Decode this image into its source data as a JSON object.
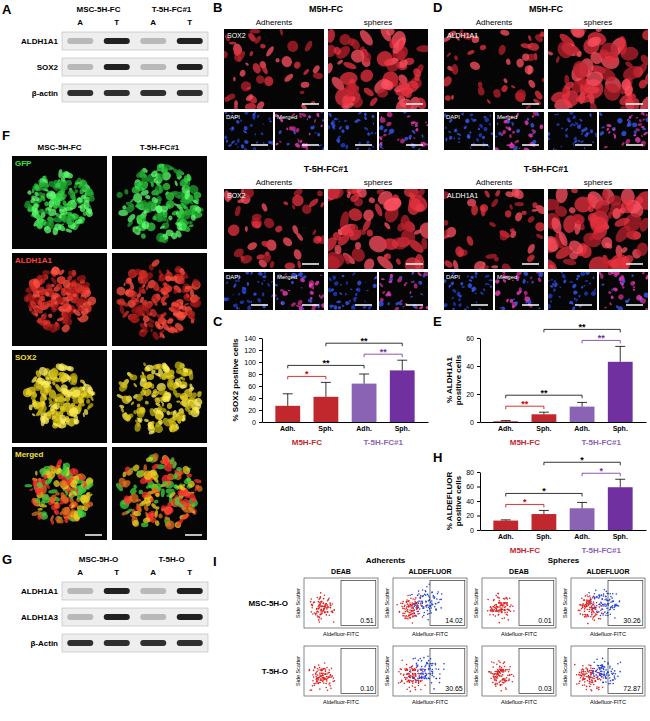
{
  "blots": [
    {
      "letter": "A",
      "groups": [
        "MSC-5H-FC",
        "T-5H-FC#1"
      ],
      "lanes": [
        "A",
        "T",
        "A",
        "T"
      ],
      "rows": [
        "ALDH1A1",
        "SOX2",
        "β-actin"
      ]
    },
    {
      "letter": "G",
      "groups": [
        "MSC-5H-O",
        "T-5H-O"
      ],
      "lanes": [
        "A",
        "T",
        "A",
        "T"
      ],
      "rows": [
        "ALDH1A1",
        "ALDH1A3",
        "β-Actin"
      ]
    }
  ],
  "micrographs": [
    {
      "letter": "B",
      "groups": [
        {
          "title": "M5H-FC",
          "columns": [
            "Adherents",
            "spheres"
          ],
          "stain": "SOX2",
          "channels": [
            "DAPI",
            "Merged"
          ]
        },
        {
          "title": "T-5H-FC#1",
          "columns": [
            "Adherents",
            "spheres"
          ],
          "stain": "SOX2",
          "channels": [
            "DAPI",
            "Merged"
          ]
        }
      ]
    },
    {
      "letter": "D",
      "groups": [
        {
          "title": "M5H-FC",
          "columns": [
            "Adherents",
            "spheres"
          ],
          "stain": "ALDH1A1",
          "channels": [
            "DAPI",
            "Merged"
          ]
        },
        {
          "title": "T-5H-FC#1",
          "columns": [
            "Adherents",
            "spheres"
          ],
          "stain": "ALDH1A1",
          "channels": [
            "DAPI",
            "Merged"
          ]
        }
      ]
    }
  ],
  "spheres": {
    "letter": "F",
    "columns": [
      "MSC-5H-FC",
      "T-5H-FC#1"
    ],
    "rows": [
      "GFP",
      "ALDH1A1",
      "SOX2",
      "Merged"
    ]
  },
  "flow": {
    "letter": "I",
    "conditions": [
      "Adherents",
      "Spheres"
    ],
    "stains": [
      "DEAB",
      "ALDEFLUOR"
    ],
    "x_label": "Aldefluor-FITC",
    "y_label": "Side Scatter",
    "rows": [
      {
        "label": "MSC-5H-O",
        "percents": [
          "0.51",
          "14.02",
          "0.01",
          "30.26"
        ]
      },
      {
        "label": "T-5H-O",
        "percents": [
          "0.10",
          "30.65",
          "0.03",
          "72.87"
        ]
      }
    ]
  },
  "chart_data": [
    {
      "letter": "C",
      "type": "bar",
      "y_label": "% SOX2 positive cells",
      "categories": [
        "Adh.",
        "Sph.",
        "Adh.",
        "Sph."
      ],
      "groups": [
        "M5H-FC",
        "T-5H-FC#1"
      ],
      "values": [
        27,
        42,
        64,
        86
      ],
      "errors": [
        20,
        24,
        16,
        17
      ],
      "colors": [
        "#c0282d",
        "#c0282d",
        "#8a63b5",
        "#7030a0"
      ],
      "ylim": [
        0,
        140
      ],
      "yticks": [
        0,
        20,
        40,
        60,
        80,
        100,
        120,
        140
      ],
      "annotations": [
        {
          "text": "*",
          "between": [
            0,
            1
          ],
          "color": "#d00000"
        },
        {
          "text": "**",
          "between": [
            2,
            3
          ],
          "color": "#7030a0"
        },
        {
          "text": "**",
          "between": [
            0,
            2
          ],
          "color": "#000000"
        },
        {
          "text": "**",
          "between": [
            1,
            3
          ],
          "color": "#000000"
        }
      ]
    },
    {
      "letter": "E",
      "type": "bar",
      "y_label": "% ALDH1A1 positive cells",
      "categories": [
        "Adh.",
        "Sph.",
        "Adh.",
        "Sph."
      ],
      "groups": [
        "M5H-FC",
        "T-5H-FC#1"
      ],
      "values": [
        0.5,
        5.5,
        11,
        43
      ],
      "errors": [
        0.5,
        1.5,
        3,
        11
      ],
      "colors": [
        "#c0282d",
        "#c0282d",
        "#8a63b5",
        "#7030a0"
      ],
      "ylim": [
        0,
        60
      ],
      "yticks": [
        0,
        20,
        40,
        60
      ],
      "annotations": [
        {
          "text": "**",
          "between": [
            0,
            1
          ],
          "color": "#d00000"
        },
        {
          "text": "**",
          "between": [
            2,
            3
          ],
          "color": "#7030a0"
        },
        {
          "text": "**",
          "between": [
            0,
            2
          ],
          "color": "#000000"
        },
        {
          "text": "**",
          "between": [
            1,
            3
          ],
          "color": "#000000"
        }
      ]
    },
    {
      "letter": "H",
      "type": "bar",
      "y_label": "% ALDEFLUOR positive cells",
      "categories": [
        "Adh.",
        "Sph.",
        "Adh.",
        "Sph."
      ],
      "groups": [
        "M5H-FC",
        "T-5H-FC#1"
      ],
      "values": [
        13,
        22,
        30,
        59
      ],
      "errors": [
        1,
        5,
        8,
        11
      ],
      "colors": [
        "#c0282d",
        "#c0282d",
        "#8a63b5",
        "#7030a0"
      ],
      "ylim": [
        0,
        80
      ],
      "yticks": [
        0,
        20,
        40,
        60,
        80
      ],
      "annotations": [
        {
          "text": "*",
          "between": [
            0,
            1
          ],
          "color": "#d00000"
        },
        {
          "text": "*",
          "between": [
            2,
            3
          ],
          "color": "#7030a0"
        },
        {
          "text": "*",
          "between": [
            0,
            2
          ],
          "color": "#000000"
        },
        {
          "text": "*",
          "between": [
            1,
            3
          ],
          "color": "#000000"
        }
      ]
    }
  ]
}
